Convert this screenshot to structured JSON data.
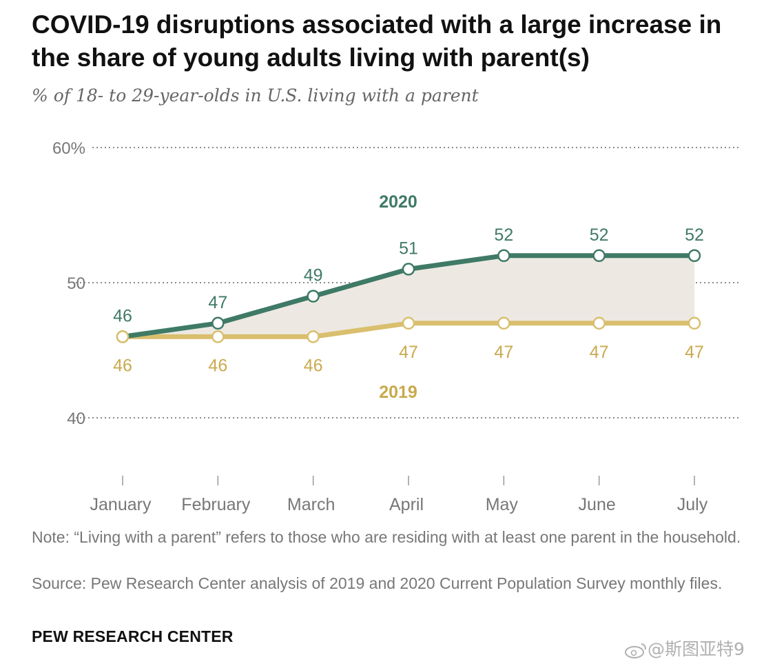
{
  "title": "COVID-19 disruptions associated with a large increase in the share of young adults living with parent(s)",
  "subtitle": "% of 18- to 29-year-olds in U.S. living with a parent",
  "note": "Note: “Living with a parent” refers to those who are residing with at least one parent in the household.",
  "source": "Source: Pew Research Center analysis of 2019 and 2020 Current Population Survey monthly files.",
  "brand": "PEW RESEARCH CENTER",
  "watermark": "@斯图亚特9",
  "chart_data": {
    "type": "line",
    "categories": [
      "January",
      "February",
      "March",
      "April",
      "May",
      "June",
      "July"
    ],
    "series": [
      {
        "name": "2020",
        "values": [
          46,
          47,
          49,
          51,
          52,
          52,
          52
        ],
        "color": "#3f7a66"
      },
      {
        "name": "2019",
        "values": [
          46,
          46,
          46,
          47,
          47,
          47,
          47
        ],
        "color": "#d9bf6e",
        "label_color": "#c9a94c"
      }
    ],
    "y_ticks": [
      "60%",
      "50",
      "40"
    ],
    "ylim": [
      40,
      60
    ],
    "grid": "dotted horizontal",
    "gap_fill": "#ede9e2",
    "series_label_placement": "inline"
  }
}
